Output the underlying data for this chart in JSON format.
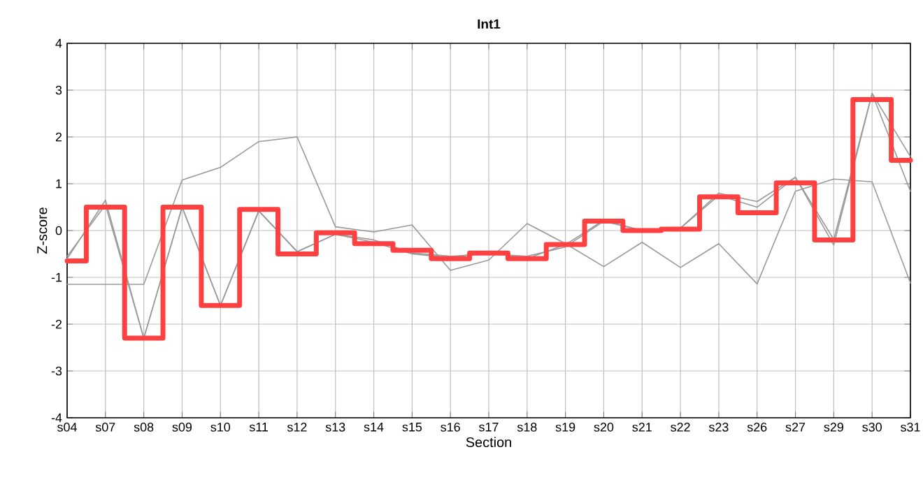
{
  "chart_data": {
    "type": "line",
    "title": "Int1",
    "xlabel": "Section",
    "ylabel": "Z-score",
    "categories": [
      "s04",
      "s07",
      "s08",
      "s09",
      "s10",
      "s11",
      "s12",
      "s13",
      "s14",
      "s15",
      "s16",
      "s17",
      "s18",
      "s19",
      "s20",
      "s21",
      "s22",
      "s23",
      "s26",
      "s27",
      "s29",
      "s30",
      "s31"
    ],
    "ylim": [
      -4,
      4
    ],
    "yticks": [
      -4,
      -3,
      -2,
      -1,
      0,
      1,
      2,
      3,
      4
    ],
    "grid": true,
    "series": [
      {
        "color": "#999999",
        "values": [
          -1.15,
          -1.15,
          -1.15,
          1.08,
          1.35,
          1.9,
          2.0,
          0.08,
          -0.03,
          0.12,
          -0.85,
          -0.63,
          0.15,
          -0.28,
          -0.77,
          -0.25,
          -0.79,
          -0.28,
          -1.14,
          0.84,
          1.1,
          1.04,
          -1.12
        ]
      },
      {
        "color": "#999999",
        "values": [
          -0.6,
          0.65,
          -2.3,
          0.5,
          -1.6,
          0.42,
          -0.45,
          -0.08,
          -0.2,
          -0.48,
          -0.55,
          -0.5,
          -0.55,
          -0.35,
          0.2,
          0.0,
          0.05,
          0.8,
          0.62,
          1.14,
          -0.19,
          2.93,
          1.58
        ]
      },
      {
        "color": "#999999",
        "values": [
          -0.55,
          0.55,
          -2.3,
          0.5,
          -1.6,
          0.42,
          -0.45,
          -0.08,
          -0.25,
          -0.5,
          -0.58,
          -0.45,
          -0.6,
          -0.3,
          0.22,
          0.0,
          0.05,
          0.75,
          0.5,
          1.14,
          -0.31,
          2.93,
          0.84
        ]
      },
      {
        "type": "step",
        "color": "#ff4040",
        "values": [
          -0.65,
          0.5,
          -2.3,
          0.5,
          -1.6,
          0.45,
          -0.5,
          -0.05,
          -0.28,
          -0.42,
          -0.6,
          -0.48,
          -0.6,
          -0.3,
          0.2,
          0.0,
          0.03,
          0.72,
          0.38,
          1.02,
          -0.2,
          2.8,
          1.5
        ]
      }
    ]
  }
}
